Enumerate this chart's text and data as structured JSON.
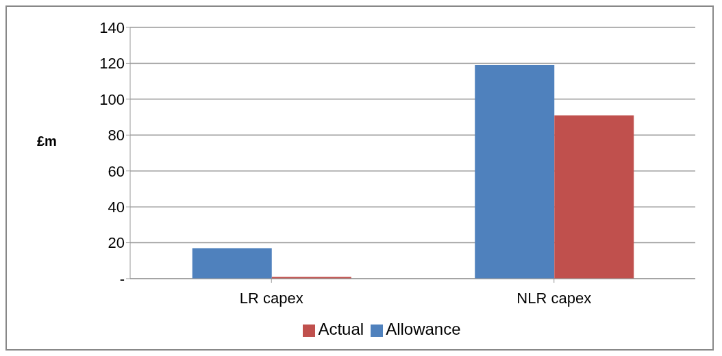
{
  "chart_data": {
    "type": "bar",
    "categories": [
      "LR capex",
      "NLR capex"
    ],
    "ylabel": "£m",
    "series": [
      {
        "name": "Allowance",
        "color": "#4f81bd",
        "values": [
          17,
          119
        ]
      },
      {
        "name": "Actual",
        "color": "#c0504d",
        "values": [
          1,
          91
        ]
      }
    ],
    "ylim": [
      0,
      140
    ],
    "yticks": [
      {
        "value": 0,
        "label": "-"
      },
      20,
      40,
      60,
      80,
      100,
      120,
      140
    ],
    "grid": "y",
    "legend": "bottom"
  }
}
